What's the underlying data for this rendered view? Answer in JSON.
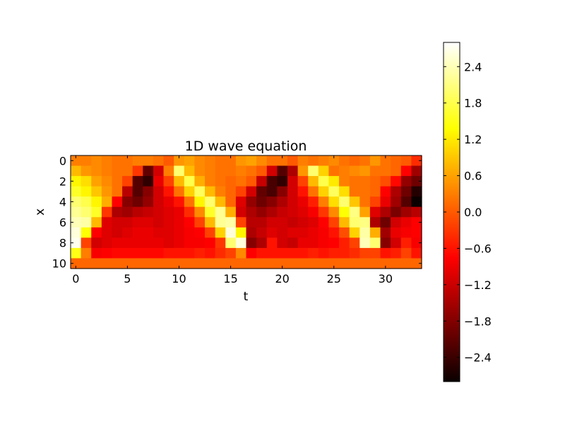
{
  "chart_data": {
    "type": "heatmap",
    "title": "1D wave equation",
    "xlabel": "t",
    "ylabel": "x",
    "xlim": [
      -0.5,
      33.5
    ],
    "ylim": [
      10.5,
      -0.5
    ],
    "x_ticks": [
      "0",
      "5",
      "10",
      "15",
      "20",
      "25",
      "30"
    ],
    "y_ticks": [
      "0",
      "2",
      "4",
      "6",
      "8",
      "10"
    ],
    "colormap": "hot",
    "color_range": [
      -2.8,
      2.8
    ],
    "colorbar_ticks": [
      "2.4",
      "1.8",
      "1.2",
      "0.6",
      "0.0",
      "−0.6",
      "−1.2",
      "−1.8",
      "−2.4"
    ],
    "rows": 11,
    "cols": 34,
    "values": [
      [
        0.3,
        0.3,
        0.4,
        0.3,
        0.2,
        0.2,
        0.3,
        0.3,
        0.2,
        0.0,
        0.5,
        0.6,
        0.4,
        0.3,
        0.2,
        0.2,
        0.5,
        0.6,
        0.4,
        0.2,
        0.2,
        0.0,
        0.3,
        0.2,
        0.3,
        0.4,
        0.2,
        0.1,
        0.2,
        0.5,
        0.2,
        0.1,
        0.0,
        -0.4
      ],
      [
        0.8,
        0.5,
        0.4,
        0.3,
        0.2,
        0.2,
        -0.3,
        -2.1,
        -1.2,
        0.3,
        2.0,
        0.8,
        0.4,
        0.3,
        0.2,
        0.2,
        0.3,
        0.2,
        0.0,
        -1.2,
        -2.2,
        -1.5,
        0.5,
        2.0,
        1.0,
        0.2,
        0.3,
        0.4,
        0.5,
        0.2,
        0.2,
        0.1,
        -0.8,
        -1.6
      ],
      [
        1.3,
        1.1,
        0.6,
        0.4,
        0.2,
        -0.2,
        -2.2,
        -2.5,
        -1.0,
        -0.2,
        0.8,
        1.8,
        0.7,
        0.3,
        0.2,
        0.1,
        0.2,
        0.0,
        -1.3,
        -2.3,
        -2.5,
        -1.2,
        -0.2,
        0.8,
        1.8,
        1.2,
        0.3,
        0.2,
        0.2,
        0.1,
        -0.1,
        -0.7,
        -1.7,
        -2.0
      ],
      [
        1.6,
        1.3,
        0.9,
        0.5,
        0.2,
        -1.4,
        -2.2,
        -1.8,
        -1.2,
        -0.6,
        0.2,
        1.0,
        1.9,
        0.8,
        0.3,
        0.1,
        -0.2,
        -1.2,
        -2.1,
        -2.3,
        -1.8,
        -1.2,
        -0.6,
        0.2,
        1.0,
        1.9,
        1.1,
        0.2,
        0.2,
        0.1,
        -0.8,
        -1.5,
        -2.0,
        -2.6
      ],
      [
        2.0,
        1.8,
        1.3,
        0.7,
        -0.8,
        -1.8,
        -2.0,
        -1.7,
        -1.2,
        -1.0,
        -0.6,
        0.2,
        1.3,
        2.0,
        0.8,
        0.1,
        -1.1,
        -1.7,
        -2.0,
        -1.8,
        -1.5,
        -1.2,
        -1.0,
        -0.5,
        0.3,
        1.1,
        2.0,
        0.9,
        0.2,
        -0.2,
        -1.0,
        -1.6,
        -2.2,
        -2.8
      ],
      [
        2.2,
        2.0,
        1.6,
        -0.3,
        -1.5,
        -1.6,
        -1.4,
        -1.3,
        -1.2,
        -1.1,
        -1.0,
        -0.4,
        0.4,
        1.6,
        2.2,
        0.7,
        -1.2,
        -1.5,
        -1.7,
        -1.5,
        -1.3,
        -1.2,
        -1.1,
        -0.9,
        -0.3,
        0.4,
        1.4,
        2.1,
        0.6,
        -1.1,
        -1.5,
        -1.9,
        -1.6,
        -1.4
      ],
      [
        2.4,
        2.3,
        0.8,
        -1.1,
        -1.2,
        -1.2,
        -1.1,
        -1.1,
        -1.2,
        -1.1,
        -1.0,
        -0.8,
        -0.2,
        0.8,
        2.2,
        2.3,
        -0.2,
        -1.4,
        -1.4,
        -1.2,
        -1.2,
        -1.3,
        -1.2,
        -1.1,
        -0.8,
        -0.2,
        0.8,
        2.0,
        2.1,
        -1.5,
        -2.0,
        -1.2,
        -1.0,
        -0.8
      ],
      [
        2.6,
        1.4,
        -0.8,
        -1.1,
        -1.2,
        -1.1,
        -1.0,
        -1.0,
        -1.1,
        -1.1,
        -1.0,
        -0.9,
        -0.8,
        -0.2,
        1.0,
        2.6,
        1.3,
        -1.5,
        -1.3,
        -1.1,
        -1.2,
        -1.1,
        -1.1,
        -1.0,
        -0.9,
        -0.6,
        -0.1,
        1.0,
        2.3,
        0.7,
        -1.6,
        -1.0,
        -0.9,
        -0.8
      ],
      [
        2.7,
        -0.2,
        -1.2,
        -1.1,
        -1.0,
        -1.0,
        -1.0,
        -1.0,
        -1.0,
        -1.1,
        -1.0,
        -0.9,
        -0.9,
        -0.8,
        -0.3,
        2.0,
        2.6,
        -1.8,
        -1.5,
        -0.6,
        -1.2,
        -1.3,
        -1.0,
        -1.0,
        -0.9,
        -0.8,
        -0.5,
        -0.2,
        2.4,
        2.0,
        -1.8,
        -1.2,
        -0.5,
        -0.9
      ],
      [
        1.5,
        0.3,
        -0.9,
        -0.8,
        -0.7,
        -0.7,
        -0.7,
        -0.7,
        -0.7,
        -0.6,
        -0.6,
        -0.6,
        -0.5,
        -0.6,
        -0.4,
        -0.2,
        0.4,
        -0.8,
        -0.6,
        -0.6,
        -0.6,
        -0.6,
        -0.6,
        -0.5,
        -0.6,
        -0.5,
        -0.5,
        -0.4,
        -0.2,
        -0.2,
        -0.6,
        -0.5,
        -0.2,
        -0.6
      ],
      [
        0.1,
        0.1,
        0.1,
        0.1,
        0.1,
        0.1,
        0.1,
        0.1,
        0.1,
        0.1,
        0.1,
        0.1,
        0.1,
        0.1,
        0.1,
        0.1,
        0.1,
        0.1,
        0.1,
        0.1,
        0.1,
        0.1,
        0.1,
        0.1,
        0.1,
        0.1,
        0.1,
        0.1,
        0.1,
        0.1,
        0.1,
        0.1,
        0.1,
        0.1
      ]
    ]
  }
}
